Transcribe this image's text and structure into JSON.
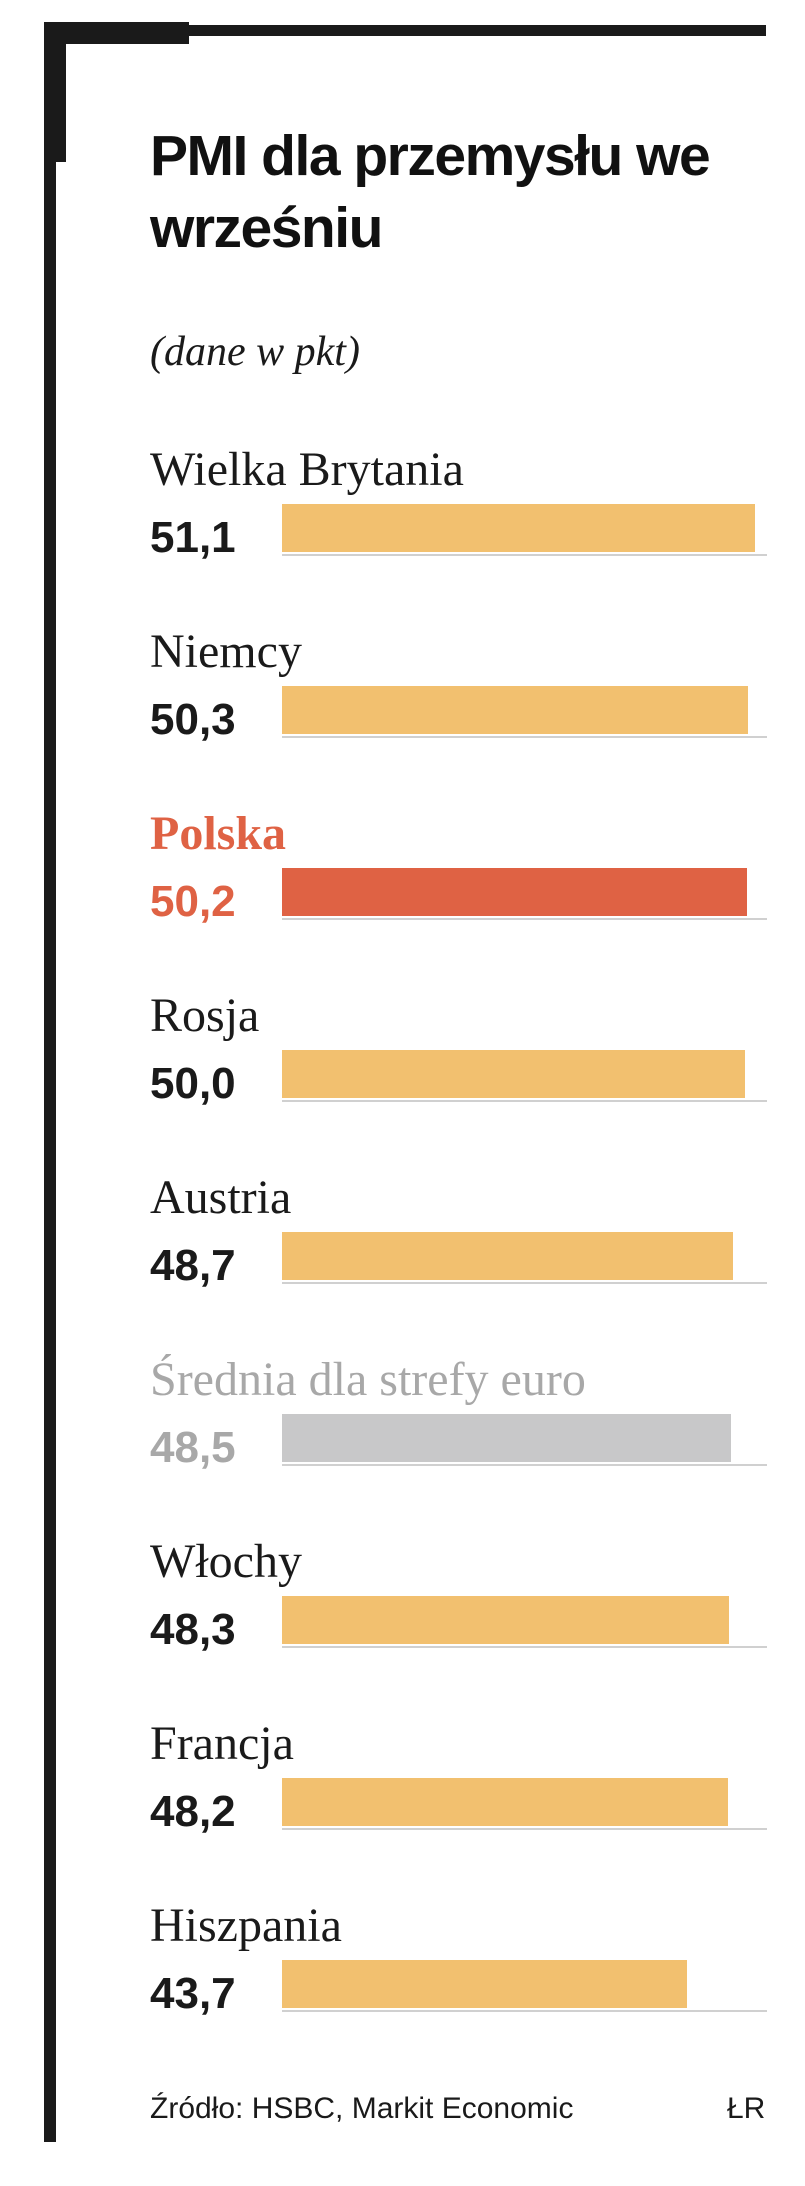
{
  "header": {
    "title": "PMI dla przemysłu we wrześniu",
    "subtitle": "(dane w pkt)"
  },
  "chart_data": {
    "type": "bar",
    "orientation": "horizontal",
    "categories": [
      "Wielka Brytania",
      "Niemcy",
      "Polska",
      "Rosja",
      "Austria",
      "Średnia dla strefy euro",
      "Włochy",
      "Francja",
      "Hiszpania"
    ],
    "values": [
      51.1,
      50.3,
      50.2,
      50.0,
      48.7,
      48.5,
      48.3,
      48.2,
      43.7
    ],
    "value_labels": [
      "51,1",
      "50,3",
      "50,2",
      "50,0",
      "48,7",
      "48,5",
      "48,3",
      "48,2",
      "43,7"
    ],
    "bar_colors": [
      "#f2c06f",
      "#f2c06f",
      "#df6244",
      "#f2c06f",
      "#f2c06f",
      "#c8c8c9",
      "#f2c06f",
      "#f2c06f",
      "#f2c06f"
    ],
    "label_colors": [
      "#1a1a1a",
      "#1a1a1a",
      "#df6244",
      "#1a1a1a",
      "#1a1a1a",
      "#a8a8a8",
      "#1a1a1a",
      "#1a1a1a",
      "#1a1a1a"
    ],
    "xlim": [
      0,
      51.1
    ]
  },
  "footer": {
    "source": "Źródło: HSBC, Markit Economic",
    "credit": "ŁR"
  }
}
